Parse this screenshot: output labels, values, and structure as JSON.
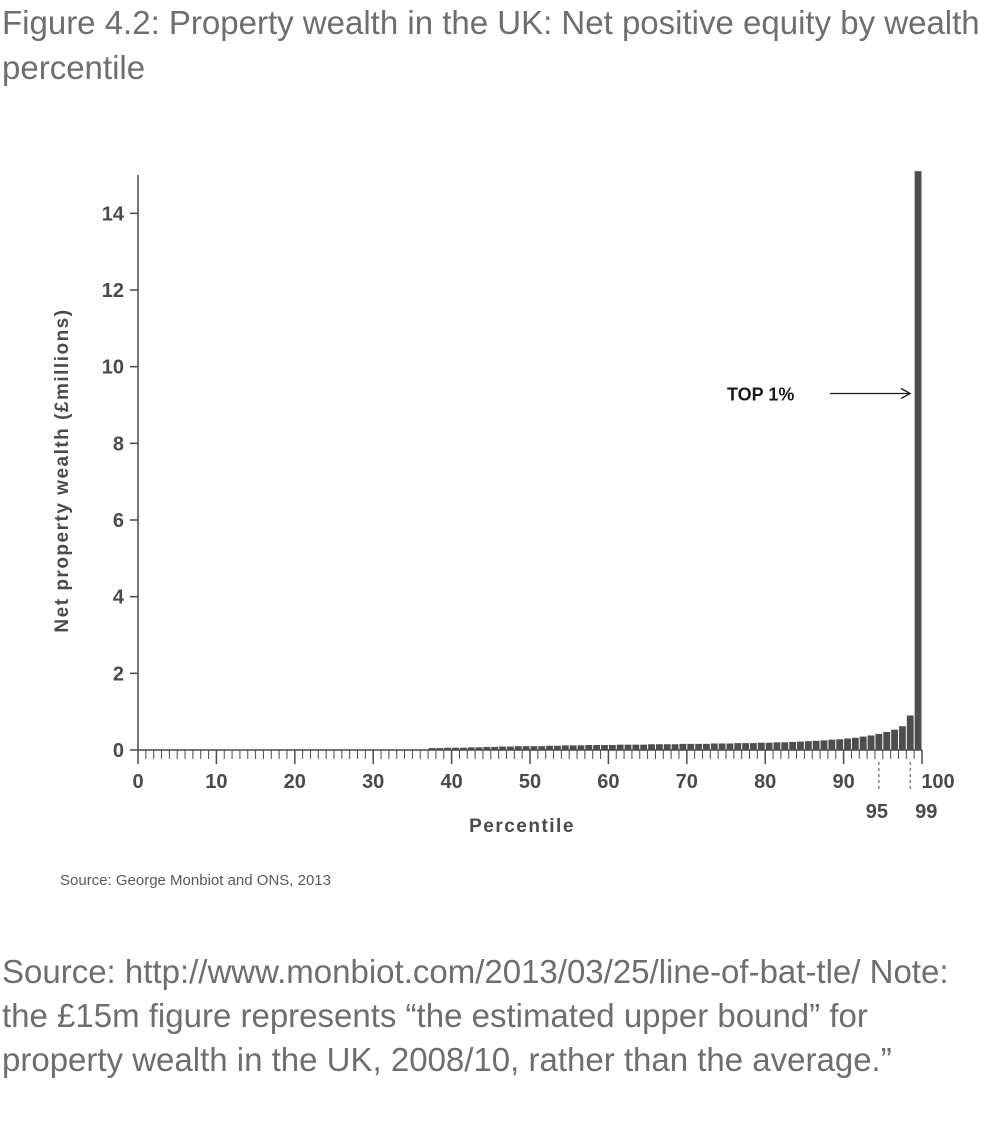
{
  "figure_title": "Figure 4.2: Property wealth in the UK: Net positive equity by wealth percentile",
  "source_small": "Source: George Monbiot and ONS, 2013",
  "note": "Source: http://www.monbiot.com/2013/03/25/line-of-bat-tle/ Note: the £15m figure represents “the estimated upper bound” for property wealth in the UK, 2008/10, rather than the average.”",
  "colors": {
    "bar": "#4d4d4f",
    "axis": "#4a4a4c",
    "text": "#6d6e70"
  },
  "chart_data": {
    "type": "bar",
    "title": "",
    "xlabel": "Percentile",
    "ylabel": "Net property wealth (£millions)",
    "ylim": [
      0,
      15
    ],
    "xlim": [
      0,
      100
    ],
    "grid": false,
    "y_ticks": [
      0,
      2,
      4,
      6,
      8,
      10,
      12,
      14
    ],
    "x_ticks": [
      0,
      10,
      20,
      30,
      40,
      50,
      60,
      70,
      80,
      90,
      100
    ],
    "x_ticks_secondary": [
      95,
      99
    ],
    "annotation": {
      "text": "TOP 1%",
      "points_to_percentile": 100
    },
    "x": [
      1,
      2,
      3,
      4,
      5,
      6,
      7,
      8,
      9,
      10,
      11,
      12,
      13,
      14,
      15,
      16,
      17,
      18,
      19,
      20,
      21,
      22,
      23,
      24,
      25,
      26,
      27,
      28,
      29,
      30,
      31,
      32,
      33,
      34,
      35,
      36,
      37,
      38,
      39,
      40,
      41,
      42,
      43,
      44,
      45,
      46,
      47,
      48,
      49,
      50,
      51,
      52,
      53,
      54,
      55,
      56,
      57,
      58,
      59,
      60,
      61,
      62,
      63,
      64,
      65,
      66,
      67,
      68,
      69,
      70,
      71,
      72,
      73,
      74,
      75,
      76,
      77,
      78,
      79,
      80,
      81,
      82,
      83,
      84,
      85,
      86,
      87,
      88,
      89,
      90,
      91,
      92,
      93,
      94,
      95,
      96,
      97,
      98,
      99,
      100
    ],
    "values": [
      0,
      0,
      0,
      0,
      0,
      0,
      0,
      0,
      0,
      0,
      0,
      0,
      0,
      0,
      0,
      0,
      0,
      0,
      0,
      0,
      0,
      0,
      0,
      0,
      0,
      0,
      0,
      0,
      0,
      0,
      0,
      0,
      0,
      0,
      0,
      0,
      0,
      0.05,
      0.05,
      0.06,
      0.06,
      0.06,
      0.07,
      0.07,
      0.08,
      0.08,
      0.09,
      0.09,
      0.1,
      0.1,
      0.1,
      0.1,
      0.11,
      0.11,
      0.12,
      0.12,
      0.12,
      0.13,
      0.13,
      0.13,
      0.13,
      0.14,
      0.14,
      0.14,
      0.14,
      0.15,
      0.15,
      0.15,
      0.15,
      0.16,
      0.16,
      0.16,
      0.16,
      0.17,
      0.17,
      0.17,
      0.18,
      0.18,
      0.18,
      0.19,
      0.19,
      0.2,
      0.2,
      0.21,
      0.22,
      0.23,
      0.24,
      0.25,
      0.27,
      0.28,
      0.3,
      0.32,
      0.35,
      0.38,
      0.42,
      0.47,
      0.53,
      0.62,
      0.9,
      15.1
    ]
  }
}
